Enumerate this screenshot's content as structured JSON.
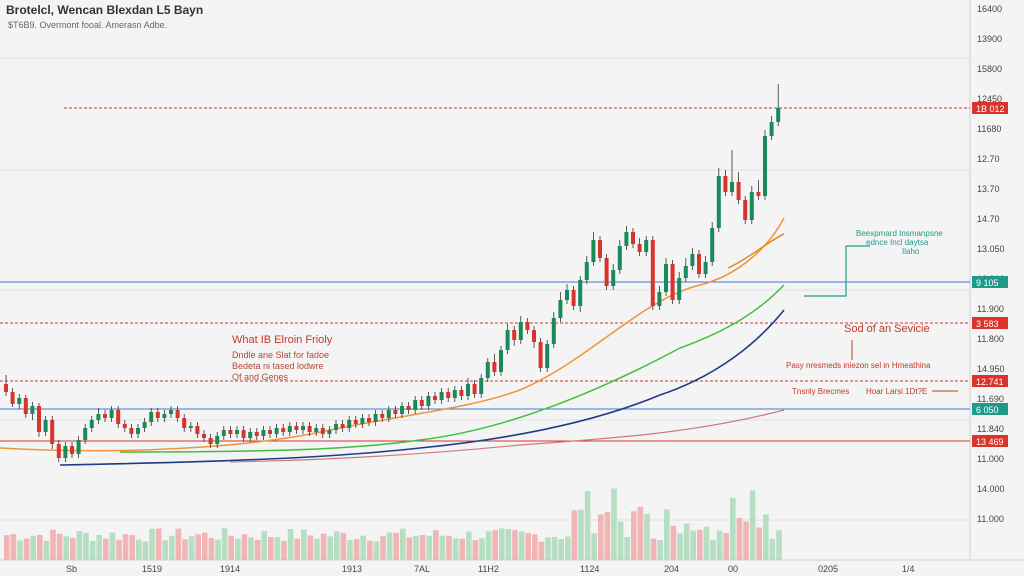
{
  "header": {
    "title": "Brotelcl, Wencan Blexdan L5 Bayn",
    "subtitle": "$T6B9.  Overmont fooal.  Amerasn Adbe."
  },
  "annotations": {
    "left_title": "What IB Elroin Frioly",
    "left_lines": [
      "Dndle ane Slat for fadoe",
      "Bedeta ni tased lodwre",
      "Of and Genes"
    ],
    "mid_red": "Sod of an Sevicie",
    "mid_red_small": "Pasy nresmeds iniezon sel in Hmeathina",
    "teal_block": [
      "Beexpmard Insmanpsne",
      "ednce Incl daytsa",
      "Ilaho"
    ],
    "row1_left": "Tnsnly Brecmes",
    "row1_right": "Hoar Larsi 1Dt?E"
  },
  "y_axis_labels": [
    "16400",
    "13900",
    "15800",
    "12450",
    "11680",
    "12.70",
    "13.70",
    "14.70",
    "13.050",
    "12.800",
    "11.900",
    "11.800",
    "14.950",
    "11.690",
    "11.840",
    "11.000",
    "14.000",
    "11.000"
  ],
  "price_tags": [
    {
      "label": "1B 012",
      "color": "#d9342b"
    },
    {
      "label": "9 105",
      "color": "#1f9a8a"
    },
    {
      "label": "3 583",
      "color": "#d9342b"
    },
    {
      "label": "12.741",
      "color": "#d9342b"
    },
    {
      "label": "6 050",
      "color": "#1f9a8a"
    },
    {
      "label": "13 469",
      "color": "#d9342b"
    }
  ],
  "x_axis_labels": [
    "Sb",
    "1519",
    "1914",
    "1913",
    "7AL",
    "11H2",
    "1124",
    "204",
    "00",
    "0205",
    "1/4"
  ],
  "colors": {
    "up": "#1a8a5a",
    "down": "#d9342b",
    "ma_orange": "#f0943a",
    "ma_green": "#3fbf3f",
    "ma_navy": "#1f3c88",
    "ma_pink": "#cf7a7a",
    "hline_red": "#d9342b",
    "hline_blue": "#3a7bd5"
  },
  "chart_data": {
    "type": "candlestick",
    "candles": [
      [
        384,
        392,
        375,
        396
      ],
      [
        392,
        404,
        388,
        407
      ],
      [
        404,
        398,
        394,
        409
      ],
      [
        398,
        414,
        395,
        418
      ],
      [
        414,
        406,
        402,
        420
      ],
      [
        406,
        432,
        403,
        437
      ],
      [
        432,
        420,
        416,
        436
      ],
      [
        420,
        444,
        416,
        449
      ],
      [
        444,
        458,
        440,
        462
      ],
      [
        458,
        446,
        442,
        462
      ],
      [
        446,
        454,
        442,
        458
      ],
      [
        454,
        440,
        436,
        458
      ],
      [
        440,
        428,
        424,
        444
      ],
      [
        428,
        420,
        416,
        432
      ],
      [
        420,
        414,
        408,
        424
      ],
      [
        414,
        418,
        410,
        422
      ],
      [
        418,
        410,
        406,
        422
      ],
      [
        410,
        424,
        406,
        428
      ],
      [
        424,
        428,
        420,
        432
      ],
      [
        428,
        434,
        424,
        438
      ],
      [
        434,
        428,
        424,
        438
      ],
      [
        428,
        422,
        418,
        432
      ],
      [
        422,
        412,
        408,
        426
      ],
      [
        412,
        418,
        408,
        422
      ],
      [
        418,
        414,
        410,
        422
      ],
      [
        414,
        410,
        406,
        418
      ],
      [
        410,
        418,
        406,
        422
      ],
      [
        418,
        428,
        414,
        432
      ],
      [
        428,
        426,
        422,
        432
      ],
      [
        426,
        434,
        422,
        438
      ],
      [
        434,
        438,
        430,
        442
      ],
      [
        438,
        444,
        434,
        448
      ],
      [
        444,
        436,
        432,
        448
      ],
      [
        436,
        430,
        426,
        440
      ],
      [
        430,
        434,
        426,
        438
      ],
      [
        434,
        430,
        426,
        438
      ],
      [
        430,
        438,
        426,
        442
      ],
      [
        438,
        432,
        428,
        442
      ],
      [
        432,
        436,
        428,
        440
      ],
      [
        436,
        430,
        426,
        440
      ],
      [
        430,
        434,
        426,
        438
      ],
      [
        434,
        428,
        424,
        438
      ],
      [
        428,
        432,
        424,
        436
      ],
      [
        432,
        426,
        422,
        436
      ],
      [
        426,
        430,
        422,
        434
      ],
      [
        430,
        426,
        422,
        434
      ],
      [
        426,
        432,
        422,
        436
      ],
      [
        432,
        428,
        424,
        436
      ],
      [
        428,
        434,
        424,
        438
      ],
      [
        434,
        430,
        426,
        438
      ],
      [
        430,
        424,
        420,
        434
      ],
      [
        424,
        428,
        420,
        432
      ],
      [
        428,
        420,
        416,
        432
      ],
      [
        420,
        424,
        416,
        428
      ],
      [
        424,
        418,
        414,
        428
      ],
      [
        418,
        422,
        414,
        426
      ],
      [
        422,
        414,
        410,
        426
      ],
      [
        414,
        418,
        410,
        422
      ],
      [
        418,
        410,
        406,
        422
      ],
      [
        410,
        414,
        406,
        418
      ],
      [
        414,
        406,
        402,
        418
      ],
      [
        406,
        410,
        402,
        414
      ],
      [
        410,
        400,
        396,
        414
      ],
      [
        400,
        406,
        396,
        410
      ],
      [
        406,
        396,
        392,
        410
      ],
      [
        396,
        400,
        392,
        404
      ],
      [
        400,
        392,
        388,
        404
      ],
      [
        392,
        398,
        388,
        402
      ],
      [
        398,
        390,
        386,
        402
      ],
      [
        390,
        396,
        386,
        400
      ],
      [
        396,
        384,
        378,
        400
      ],
      [
        384,
        394,
        380,
        398
      ],
      [
        394,
        378,
        374,
        398
      ],
      [
        378,
        362,
        358,
        382
      ],
      [
        362,
        372,
        354,
        376
      ],
      [
        372,
        350,
        346,
        376
      ],
      [
        350,
        330,
        324,
        354
      ],
      [
        330,
        340,
        326,
        346
      ],
      [
        340,
        322,
        316,
        344
      ],
      [
        322,
        330,
        318,
        334
      ],
      [
        330,
        342,
        326,
        348
      ],
      [
        342,
        368,
        338,
        372
      ],
      [
        368,
        344,
        340,
        372
      ],
      [
        344,
        318,
        312,
        348
      ],
      [
        318,
        300,
        292,
        322
      ],
      [
        300,
        290,
        284,
        304
      ],
      [
        290,
        306,
        286,
        310
      ],
      [
        306,
        280,
        276,
        312
      ],
      [
        280,
        262,
        256,
        284
      ],
      [
        262,
        240,
        232,
        266
      ],
      [
        240,
        258,
        236,
        262
      ],
      [
        258,
        286,
        254,
        290
      ],
      [
        286,
        270,
        264,
        290
      ],
      [
        270,
        246,
        240,
        274
      ],
      [
        246,
        232,
        226,
        250
      ],
      [
        232,
        244,
        228,
        248
      ],
      [
        244,
        252,
        238,
        256
      ],
      [
        252,
        240,
        236,
        256
      ],
      [
        240,
        306,
        236,
        310
      ],
      [
        306,
        292,
        286,
        310
      ],
      [
        292,
        264,
        258,
        296
      ],
      [
        264,
        300,
        260,
        304
      ],
      [
        300,
        278,
        272,
        304
      ],
      [
        278,
        266,
        258,
        282
      ],
      [
        266,
        254,
        248,
        270
      ],
      [
        254,
        274,
        250,
        278
      ],
      [
        274,
        262,
        256,
        278
      ],
      [
        262,
        228,
        222,
        266
      ],
      [
        228,
        176,
        168,
        232
      ],
      [
        176,
        192,
        170,
        196
      ],
      [
        192,
        182,
        150,
        196
      ],
      [
        182,
        200,
        172,
        204
      ],
      [
        200,
        220,
        196,
        224
      ],
      [
        220,
        192,
        186,
        224
      ],
      [
        192,
        196,
        180,
        200
      ],
      [
        196,
        136,
        130,
        200
      ],
      [
        136,
        122,
        116,
        140
      ],
      [
        122,
        108,
        84,
        126
      ]
    ]
  }
}
